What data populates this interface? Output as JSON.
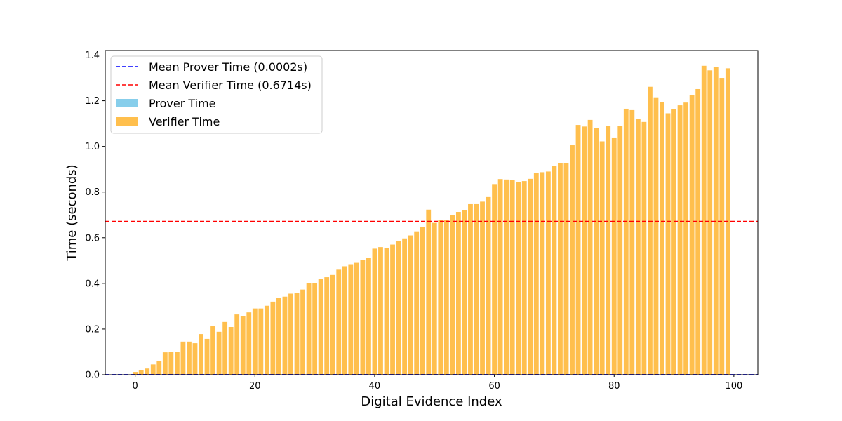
{
  "chart_data": {
    "type": "bar",
    "title": "",
    "xlabel": "Digital Evidence Index",
    "ylabel": "Time (seconds)",
    "xlim": [
      -5,
      104
    ],
    "ylim": [
      0,
      1.42
    ],
    "xticks": [
      0,
      20,
      40,
      60,
      80,
      100
    ],
    "xtick_labels": [
      "0",
      "20",
      "40",
      "60",
      "80",
      "100"
    ],
    "yticks": [
      0.0,
      0.2,
      0.4,
      0.6,
      0.8,
      1.0,
      1.2,
      1.4
    ],
    "ytick_labels": [
      "0.0",
      "0.2",
      "0.4",
      "0.6",
      "0.8",
      "1.0",
      "1.2",
      "1.4"
    ],
    "grid": false,
    "legend_position": "top-left",
    "series": [
      {
        "name": "Prover Time",
        "kind": "bar",
        "color": "#87ceeb",
        "x_start": 0,
        "values": [
          0.0002,
          0.0002,
          0.0002,
          0.0002,
          0.0002,
          0.0002,
          0.0002,
          0.0002,
          0.0002,
          0.0002,
          0.0002,
          0.0002,
          0.0002,
          0.0002,
          0.0002,
          0.0002,
          0.0002,
          0.0002,
          0.0002,
          0.0002,
          0.0002,
          0.0002,
          0.0002,
          0.0002,
          0.0002,
          0.0002,
          0.0002,
          0.0002,
          0.0002,
          0.0002,
          0.0002,
          0.0002,
          0.0002,
          0.0002,
          0.0002,
          0.0002,
          0.0002,
          0.0002,
          0.0002,
          0.0002,
          0.0002,
          0.0002,
          0.0002,
          0.0002,
          0.0002,
          0.0002,
          0.0002,
          0.0002,
          0.0002,
          0.0002,
          0.0002,
          0.0002,
          0.0002,
          0.0002,
          0.0002,
          0.0002,
          0.0002,
          0.0002,
          0.0002,
          0.0002,
          0.0002,
          0.0002,
          0.0002,
          0.0002,
          0.0002,
          0.0002,
          0.0002,
          0.0002,
          0.0002,
          0.0002,
          0.0002,
          0.0002,
          0.0002,
          0.0002,
          0.0002,
          0.0002,
          0.0002,
          0.0002,
          0.0002,
          0.0002,
          0.0002,
          0.0002,
          0.0002,
          0.0002,
          0.0002,
          0.0002,
          0.0002,
          0.0002,
          0.0002,
          0.0002,
          0.0002,
          0.0002,
          0.0002,
          0.0002,
          0.0002,
          0.0002,
          0.0002,
          0.0002,
          0.0002,
          0.0002
        ]
      },
      {
        "name": "Verifier Time",
        "kind": "bar",
        "color": "#ffbf4d",
        "x_start": 0,
        "values": [
          0.012,
          0.02,
          0.027,
          0.045,
          0.06,
          0.098,
          0.1,
          0.1,
          0.145,
          0.145,
          0.138,
          0.178,
          0.157,
          0.212,
          0.188,
          0.231,
          0.209,
          0.264,
          0.257,
          0.273,
          0.29,
          0.29,
          0.302,
          0.32,
          0.335,
          0.342,
          0.355,
          0.358,
          0.373,
          0.4,
          0.4,
          0.42,
          0.427,
          0.437,
          0.46,
          0.475,
          0.484,
          0.49,
          0.503,
          0.511,
          0.552,
          0.559,
          0.556,
          0.57,
          0.584,
          0.597,
          0.61,
          0.628,
          0.648,
          0.723,
          0.665,
          0.678,
          0.678,
          0.7,
          0.713,
          0.722,
          0.747,
          0.747,
          0.758,
          0.778,
          0.835,
          0.857,
          0.855,
          0.853,
          0.843,
          0.848,
          0.858,
          0.885,
          0.887,
          0.89,
          0.915,
          0.927,
          0.927,
          1.005,
          1.094,
          1.087,
          1.116,
          1.079,
          1.022,
          1.09,
          1.039,
          1.09,
          1.165,
          1.159,
          1.119,
          1.107,
          1.261,
          1.215,
          1.195,
          1.145,
          1.163,
          1.18,
          1.192,
          1.226,
          1.251,
          1.353,
          1.333,
          1.349,
          1.3,
          1.342
        ]
      },
      {
        "name": "Mean Prover Time (0.0002s)",
        "kind": "hline",
        "value": 0.0002,
        "color": "#0000ff",
        "dash": "dashed"
      },
      {
        "name": "Mean Verifier Time (0.6714s)",
        "kind": "hline",
        "value": 0.6714,
        "color": "#ff0000",
        "dash": "dashed"
      }
    ],
    "legend_order": [
      "Mean Prover Time (0.0002s)",
      "Mean Verifier Time (0.6714s)",
      "Prover Time",
      "Verifier Time"
    ]
  }
}
